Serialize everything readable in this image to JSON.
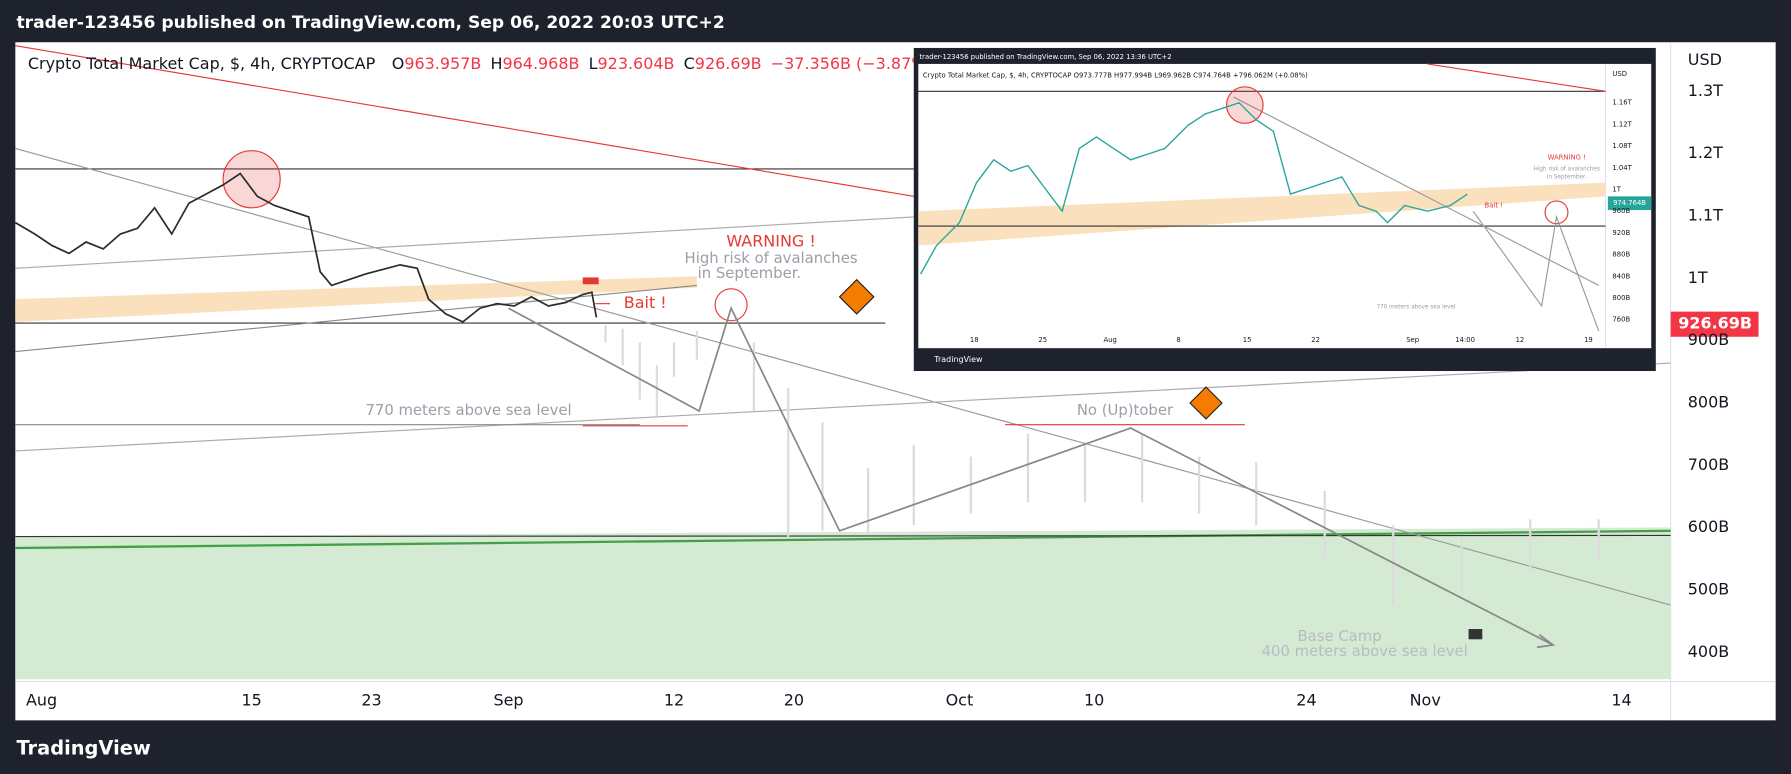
{
  "header": {
    "title": "trader-123456 published on TradingView.com, Sep 06, 2022 20:03 UTC+2"
  },
  "legend": {
    "symbol": "Crypto Total Market Cap, $, 4h, CRYPTOCAP",
    "items": [
      {
        "label": "O",
        "value": "963.957B"
      },
      {
        "label": "H",
        "value": "964.968B"
      },
      {
        "label": "L",
        "value": "923.604B"
      },
      {
        "label": "C",
        "value": "926.69B"
      }
    ],
    "change": "−37.356B (−3.87%)"
  },
  "price_axis": {
    "unit": "USD",
    "ticks": [
      "1.3T",
      "1.2T",
      "1.1T",
      "1T",
      "900B",
      "800B",
      "700B",
      "600B",
      "500B",
      "400B"
    ],
    "last_price": "926.69B"
  },
  "time_axis": {
    "ticks": [
      "Aug",
      "15",
      "23",
      "Sep",
      "12",
      "20",
      "Oct",
      "10",
      "24",
      "Nov",
      "14"
    ]
  },
  "annotations": {
    "warning": "WARNING !",
    "risk_1": "High risk of avalanches",
    "risk_2": "in September.",
    "bait": "Bait !",
    "level_770": "770  meters above sea level",
    "uptober": "No (Up)tober",
    "base_camp": "Base Camp",
    "level_400": "400 meters above sea level"
  },
  "inset": {
    "header": "trader-123456 published on TradingView.com, Sep 06, 2022 13:36 UTC+2",
    "legend": "Crypto Total Market Cap, $, 4h, CRYPTOCAP  O973.777B  H977.994B  L969.962B  C974.764B  +796.062M (+0.08%)",
    "unit": "USD",
    "price_ticks": [
      "1.16T",
      "1.12T",
      "1.08T",
      "1.04T",
      "1T",
      "960B",
      "920B",
      "880B",
      "840B",
      "800B",
      "760B"
    ],
    "last_price": "974.764B",
    "time_ticks": [
      "18",
      "25",
      "Aug",
      "8",
      "15",
      "22",
      "Sep",
      "14:00",
      "12",
      "19"
    ],
    "warning": "WARNING !",
    "risk_1": "High risk of avalanches",
    "risk_2": "in September.",
    "bait": "Bait !",
    "level_770": "770  meters above sea level",
    "brand": "TradingView"
  },
  "footer": {
    "brand": "TradingView"
  }
}
